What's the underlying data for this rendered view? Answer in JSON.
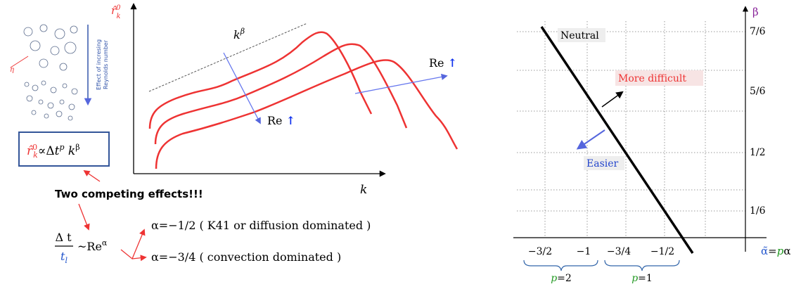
{
  "left": {
    "y_label": {
      "base": "r̂",
      "sup": "0",
      "sub": "k"
    },
    "x_label": "k",
    "power_law": {
      "base": "k",
      "sup": "β"
    },
    "re_down": {
      "text": "Re ",
      "arrow": "↑"
    },
    "re_right": {
      "text": "Re ",
      "arrow": "↑"
    },
    "vortex_note": [
      "Effect of incresing",
      "Reynolds number"
    ],
    "eta": "η",
    "formula": {
      "r": "r̂",
      "r_sup": "0",
      "r_sub": "k",
      "prop": "∝Δ",
      "t": "t",
      "t_sup": "p",
      "k": " k",
      "k_sup": "β"
    },
    "two_effects": "Two competing effects!!!",
    "ratio": {
      "num": "Δ t",
      "den": "t",
      "den_sub": "l",
      "rel": "~Re",
      "rel_sup": "α"
    },
    "alpha_cases": [
      "α=−1/2  ( K41 or diffusion dominated )",
      "α=−3/4  ( convection dominated )"
    ]
  },
  "right": {
    "y_axis_label": "β",
    "x_axis_label": {
      "alpha": "α̃",
      "eq": "=",
      "p": "p",
      "rest": "α"
    },
    "y_ticks": [
      "7/6",
      "5/6",
      "1/2",
      "1/6"
    ],
    "x_ticks": [
      "−3/2",
      "−1",
      "−3/4",
      "−1/2"
    ],
    "braces": [
      {
        "p": "p",
        "eq": "=2"
      },
      {
        "p": "p",
        "eq": "=1"
      }
    ],
    "regions": {
      "neutral": "Neutral",
      "harder": "More difficult",
      "easier": "Easier"
    }
  }
}
